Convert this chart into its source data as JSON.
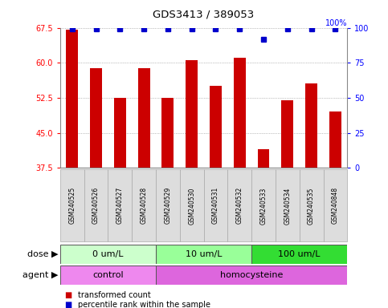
{
  "title": "GDS3413 / 389053",
  "samples": [
    "GSM240525",
    "GSM240526",
    "GSM240527",
    "GSM240528",
    "GSM240529",
    "GSM240530",
    "GSM240531",
    "GSM240532",
    "GSM240533",
    "GSM240534",
    "GSM240535",
    "GSM240848"
  ],
  "bar_values": [
    67.0,
    58.8,
    52.5,
    58.8,
    52.5,
    60.5,
    55.0,
    61.0,
    41.5,
    52.0,
    55.5,
    49.5
  ],
  "percentile_values": [
    99,
    99,
    99,
    99,
    99,
    99,
    99,
    99,
    92,
    99,
    99,
    99
  ],
  "bar_color": "#cc0000",
  "dot_color": "#0000cc",
  "ylim_left": [
    37.5,
    67.5
  ],
  "yticks_left": [
    37.5,
    45.0,
    52.5,
    60.0,
    67.5
  ],
  "ylim_right": [
    0,
    100
  ],
  "yticks_right": [
    0,
    25,
    50,
    75,
    100
  ],
  "dose_groups": [
    {
      "label": "0 um/L",
      "start": 0,
      "end": 4,
      "color": "#ccffcc"
    },
    {
      "label": "10 um/L",
      "start": 4,
      "end": 8,
      "color": "#99ff99"
    },
    {
      "label": "100 um/L",
      "start": 8,
      "end": 12,
      "color": "#33dd33"
    }
  ],
  "agent_groups": [
    {
      "label": "control",
      "start": 0,
      "end": 4,
      "color": "#ee88ee"
    },
    {
      "label": "homocysteine",
      "start": 4,
      "end": 12,
      "color": "#dd66dd"
    }
  ],
  "dose_label": "dose",
  "agent_label": "agent",
  "legend_bar_label": "transformed count",
  "legend_dot_label": "percentile rank within the sample",
  "grid_color": "#888888",
  "sample_bg": "#dddddd",
  "sample_edge": "#aaaaaa"
}
